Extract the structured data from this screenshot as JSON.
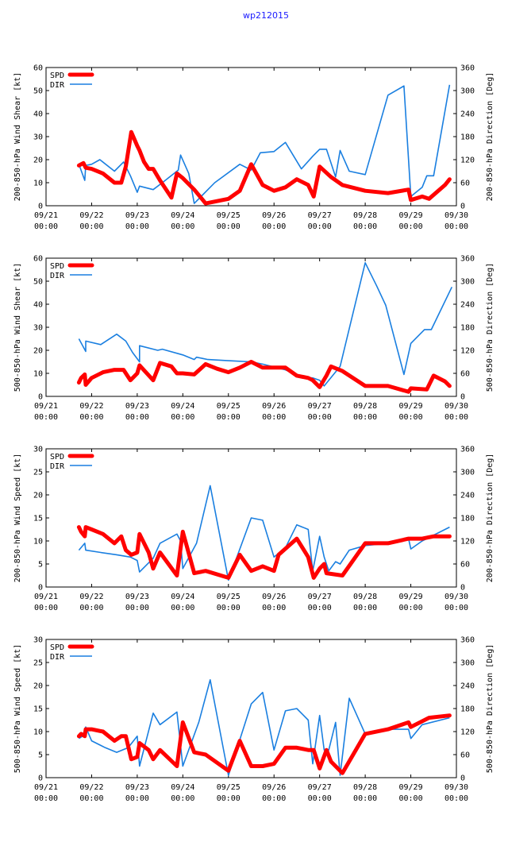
{
  "title": "wp212015",
  "colors": {
    "spd": "#ff0000",
    "dir": "#1a7fe0",
    "title": "#1a1aff"
  },
  "chart_data": [
    {
      "type": "line",
      "ylabel": "200-850-hPa Wind Shear [kt]",
      "y2label": "200-850-hPa Direction [Deg]",
      "ylim": [
        0,
        60
      ],
      "y2lim": [
        0,
        360
      ],
      "yticks": [
        "0",
        "10",
        "20",
        "30",
        "40",
        "50",
        "60"
      ],
      "y2ticks": [
        "0",
        "60",
        "120",
        "180",
        "240",
        "300",
        "360"
      ],
      "xlim": [
        0,
        9
      ],
      "xticks": [
        [
          "09/21",
          "00:00"
        ],
        [
          "09/22",
          "00:00"
        ],
        [
          "09/23",
          "00:00"
        ],
        [
          "09/24",
          "00:00"
        ],
        [
          "09/25",
          "00:00"
        ],
        [
          "09/26",
          "00:00"
        ],
        [
          "09/27",
          "00:00"
        ],
        [
          "09/28",
          "00:00"
        ],
        [
          "09/29",
          "00:00"
        ],
        [
          "09/30",
          "00:00"
        ]
      ],
      "legend": [
        "SPD",
        "DIR"
      ],
      "series": [
        {
          "name": "SPD",
          "axis": "left",
          "x": [
            0.72,
            0.77,
            0.82,
            0.87,
            1.0,
            1.25,
            1.5,
            1.65,
            1.75,
            1.87,
            2.0,
            2.05,
            2.15,
            2.25,
            2.35,
            2.5,
            2.75,
            2.87,
            3.0,
            3.25,
            3.5,
            4.0,
            4.25,
            4.5,
            4.75,
            5.0,
            5.25,
            5.5,
            5.75,
            5.87,
            6.0,
            6.25,
            6.5,
            7.0,
            7.5,
            7.95,
            8.0,
            8.25,
            8.4,
            8.75,
            8.85
          ],
          "values": [
            17.5,
            18,
            18.5,
            16.5,
            16,
            14,
            10,
            10,
            17,
            32,
            26,
            24,
            19,
            16,
            16,
            11,
            3.5,
            14,
            12,
            7,
            1,
            3,
            6.5,
            18,
            9,
            6.5,
            8,
            11.5,
            9,
            4,
            17,
            12.5,
            9,
            6.5,
            5.5,
            7,
            2.5,
            4,
            3,
            9,
            11.5
          ]
        },
        {
          "name": "DIR",
          "axis": "right",
          "x": [
            0.72,
            0.85,
            0.87,
            1.0,
            1.18,
            1.5,
            1.7,
            1.85,
            2.0,
            2.05,
            2.35,
            2.55,
            2.9,
            2.95,
            3.13,
            3.25,
            3.7,
            4.25,
            4.5,
            4.7,
            5.0,
            5.25,
            5.6,
            5.85,
            6.0,
            6.15,
            6.35,
            6.45,
            6.65,
            7.0,
            7.5,
            7.85,
            8.0,
            8.25,
            8.35,
            8.5,
            8.85
          ],
          "values": [
            108,
            66,
            105,
            108,
            120,
            90,
            114,
            78,
            35,
            51,
            42,
            60,
            93,
            132,
            84,
            6,
            60,
            108,
            93,
            138,
            141,
            165,
            96,
            129,
            147,
            147,
            75,
            144,
            90,
            81,
            288,
            312,
            24,
            48,
            78,
            78,
            315
          ]
        }
      ]
    },
    {
      "type": "line",
      "ylabel": "500-850-hPa Wind Shear [kt]",
      "y2label": "500-850-hPa Direction [Deg]",
      "ylim": [
        0,
        60
      ],
      "y2lim": [
        0,
        360
      ],
      "yticks": [
        "0",
        "10",
        "20",
        "30",
        "40",
        "50",
        "60"
      ],
      "y2ticks": [
        "0",
        "60",
        "120",
        "180",
        "240",
        "300",
        "360"
      ],
      "xlim": [
        0,
        9
      ],
      "xticks": [
        [
          "09/21",
          "00:00"
        ],
        [
          "09/22",
          "00:00"
        ],
        [
          "09/23",
          "00:00"
        ],
        [
          "09/24",
          "00:00"
        ],
        [
          "09/25",
          "00:00"
        ],
        [
          "09/26",
          "00:00"
        ],
        [
          "09/27",
          "00:00"
        ],
        [
          "09/28",
          "00:00"
        ],
        [
          "09/29",
          "00:00"
        ],
        [
          "09/30",
          "00:00"
        ]
      ],
      "legend": [
        "SPD",
        "DIR"
      ],
      "series": [
        {
          "name": "SPD",
          "axis": "left",
          "x": [
            0.72,
            0.77,
            0.85,
            0.87,
            1.0,
            1.25,
            1.5,
            1.7,
            1.85,
            2.0,
            2.05,
            2.35,
            2.5,
            2.75,
            2.87,
            3.0,
            3.25,
            3.5,
            3.75,
            4.0,
            4.25,
            4.5,
            4.75,
            5.0,
            5.25,
            5.5,
            5.75,
            5.85,
            6.0,
            6.15,
            6.25,
            6.5,
            7.0,
            7.5,
            7.95,
            8.0,
            8.35,
            8.5,
            8.75,
            8.85
          ],
          "values": [
            6,
            8,
            9.5,
            5,
            8,
            10.5,
            11.5,
            11.5,
            7,
            10,
            13.5,
            7,
            14.5,
            13,
            10,
            10,
            9.5,
            14,
            12,
            10.5,
            12.5,
            15,
            12.5,
            12.5,
            12.5,
            9,
            8,
            7,
            4,
            9,
            13,
            11,
            4.5,
            4.5,
            2,
            3.5,
            3,
            9,
            6.5,
            4.5
          ]
        },
        {
          "name": "DIR",
          "axis": "right",
          "x": [
            0.72,
            0.87,
            0.87,
            1.2,
            1.55,
            1.75,
            1.9,
            2.05,
            2.05,
            2.45,
            2.55,
            3.0,
            3.25,
            3.3,
            3.55,
            4.0,
            4.5,
            4.75,
            5.25,
            5.6,
            5.85,
            6.0,
            6.1,
            6.45,
            7.0,
            7.25,
            7.45,
            7.85,
            8.0,
            8.3,
            8.45,
            8.9
          ],
          "values": [
            150,
            117,
            144,
            135,
            162,
            144,
            114,
            90,
            132,
            120,
            123,
            108,
            96,
            102,
            96,
            93,
            90,
            84,
            69,
            51,
            48,
            42,
            27,
            78,
            348,
            288,
            237,
            57,
            138,
            174,
            174,
            285
          ]
        }
      ]
    },
    {
      "type": "line",
      "ylabel": "200-850-hPa Wind Speed [kt]",
      "y2label": "200-850-hPa Direction [Deg]",
      "ylim": [
        0,
        30
      ],
      "y2lim": [
        0,
        360
      ],
      "yticks": [
        "0",
        "5",
        "10",
        "15",
        "20",
        "25",
        "30"
      ],
      "y2ticks": [
        "0",
        "60",
        "120",
        "180",
        "240",
        "300",
        "360"
      ],
      "xlim": [
        0,
        9
      ],
      "xticks": [
        [
          "09/21",
          "00:00"
        ],
        [
          "09/22",
          "00:00"
        ],
        [
          "09/23",
          "00:00"
        ],
        [
          "09/24",
          "00:00"
        ],
        [
          "09/25",
          "00:00"
        ],
        [
          "09/26",
          "00:00"
        ],
        [
          "09/27",
          "00:00"
        ],
        [
          "09/28",
          "00:00"
        ],
        [
          "09/29",
          "00:00"
        ],
        [
          "09/30",
          "00:00"
        ]
      ],
      "legend": [
        "SPD",
        "DIR"
      ],
      "series": [
        {
          "name": "SPD",
          "axis": "left",
          "x": [
            0.72,
            0.77,
            0.85,
            0.87,
            1.0,
            1.25,
            1.5,
            1.65,
            1.75,
            1.87,
            2.0,
            2.05,
            2.25,
            2.35,
            2.5,
            2.87,
            3.0,
            3.25,
            3.5,
            4.0,
            4.25,
            4.5,
            4.75,
            5.0,
            5.1,
            5.5,
            5.75,
            5.87,
            6.0,
            6.1,
            6.15,
            6.5,
            7.0,
            7.5,
            7.95,
            8.0,
            8.25,
            8.5,
            8.85
          ],
          "values": [
            13,
            12,
            11,
            13,
            12.5,
            11.5,
            9.5,
            11,
            8,
            7,
            7.5,
            11.5,
            7.5,
            4,
            7.5,
            2.5,
            12,
            3,
            3.5,
            2,
            7,
            3.5,
            4.5,
            3.5,
            7,
            10.5,
            6.5,
            2,
            4,
            5,
            3,
            2.5,
            9.5,
            9.5,
            10.5,
            10.5,
            10.5,
            11,
            11
          ]
        },
        {
          "name": "DIR",
          "axis": "right",
          "x": [
            0.72,
            0.85,
            0.87,
            1.2,
            1.55,
            1.85,
            2.0,
            2.05,
            2.35,
            2.5,
            2.87,
            2.95,
            3.0,
            3.3,
            3.6,
            4.0,
            4.5,
            4.75,
            5.0,
            5.25,
            5.5,
            5.75,
            5.85,
            6.0,
            6.1,
            6.2,
            6.35,
            6.45,
            6.65,
            7.0,
            7.5,
            7.95,
            8.0,
            8.25,
            8.85
          ],
          "values": [
            96,
            114,
            96,
            90,
            84,
            78,
            69,
            39,
            75,
            114,
            138,
            120,
            48,
            114,
            264,
            18,
            180,
            174,
            78,
            102,
            162,
            150,
            42,
            132,
            78,
            42,
            66,
            60,
            96,
            108,
            114,
            126,
            99,
            120,
            156
          ]
        }
      ]
    },
    {
      "type": "line",
      "ylabel": "500-850-hPa Wind Speed [kt]",
      "y2label": "500-850-hPa Direction [Deg]",
      "ylim": [
        0,
        30
      ],
      "y2lim": [
        0,
        360
      ],
      "yticks": [
        "0",
        "5",
        "10",
        "15",
        "20",
        "25",
        "30"
      ],
      "y2ticks": [
        "0",
        "60",
        "120",
        "180",
        "240",
        "300",
        "360"
      ],
      "xlim": [
        0,
        9
      ],
      "xticks": [
        [
          "09/21",
          "00:00"
        ],
        [
          "09/22",
          "00:00"
        ],
        [
          "09/23",
          "00:00"
        ],
        [
          "09/24",
          "00:00"
        ],
        [
          "09/25",
          "00:00"
        ],
        [
          "09/26",
          "00:00"
        ],
        [
          "09/27",
          "00:00"
        ],
        [
          "09/28",
          "00:00"
        ],
        [
          "09/29",
          "00:00"
        ],
        [
          "09/30",
          "00:00"
        ]
      ],
      "legend": [
        "SPD",
        "DIR"
      ],
      "series": [
        {
          "name": "SPD",
          "axis": "left",
          "x": [
            0.72,
            0.77,
            0.85,
            0.87,
            1.0,
            1.25,
            1.5,
            1.65,
            1.75,
            1.87,
            2.0,
            2.05,
            2.25,
            2.35,
            2.5,
            2.87,
            3.0,
            3.25,
            3.5,
            4.0,
            4.25,
            4.5,
            4.75,
            5.0,
            5.25,
            5.5,
            5.75,
            5.87,
            6.0,
            6.15,
            6.25,
            6.5,
            7.0,
            7.5,
            7.95,
            8.0,
            8.4,
            8.85
          ],
          "values": [
            9,
            9.5,
            9,
            10.5,
            10.5,
            10,
            8,
            9,
            9,
            4,
            4.5,
            7.5,
            6,
            4,
            6,
            2.5,
            12,
            5.5,
            5,
            1.5,
            8,
            2.5,
            2.5,
            3,
            6.5,
            6.5,
            6,
            6,
            2,
            6,
            3.5,
            1,
            9.5,
            10.5,
            12,
            11,
            13,
            13.5
          ]
        },
        {
          "name": "DIR",
          "axis": "right",
          "x": [
            0.72,
            0.8,
            0.87,
            1.0,
            1.3,
            1.55,
            1.8,
            2.0,
            2.05,
            2.35,
            2.5,
            2.87,
            3.0,
            3.35,
            3.6,
            4.0,
            4.5,
            4.75,
            5.0,
            5.25,
            5.5,
            5.75,
            5.85,
            6.0,
            6.1,
            6.2,
            6.35,
            6.45,
            6.65,
            7.0,
            7.45,
            7.95,
            8.0,
            8.25,
            8.85
          ],
          "values": [
            102,
            108,
            132,
            96,
            78,
            66,
            78,
            108,
            30,
            168,
            138,
            171,
            30,
            144,
            255,
            6,
            192,
            222,
            72,
            174,
            180,
            150,
            36,
            162,
            72,
            72,
            144,
            6,
            207,
            114,
            126,
            126,
            102,
            138,
            156
          ]
        }
      ]
    }
  ]
}
